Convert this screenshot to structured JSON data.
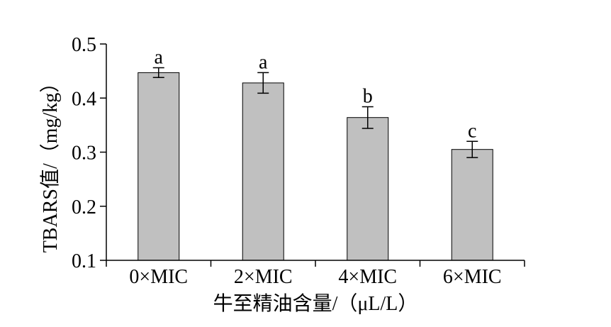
{
  "chart_data": {
    "type": "bar",
    "categories": [
      "0×MIC",
      "2×MIC",
      "4×MIC",
      "6×MIC"
    ],
    "values": [
      0.447,
      0.428,
      0.364,
      0.305
    ],
    "errors": [
      0.009,
      0.019,
      0.02,
      0.015
    ],
    "significance": [
      "a",
      "a",
      "b",
      "c"
    ],
    "ylim": [
      0.1,
      0.5
    ],
    "yticks": [
      "0.1",
      "0.2",
      "0.3",
      "0.4",
      "0.5"
    ],
    "xlabel": "牛至精油含量/（μL/L）",
    "ylabel": "TBARS值/（mg/kg）",
    "grid": false,
    "bar_color": "#c0c0c0"
  }
}
